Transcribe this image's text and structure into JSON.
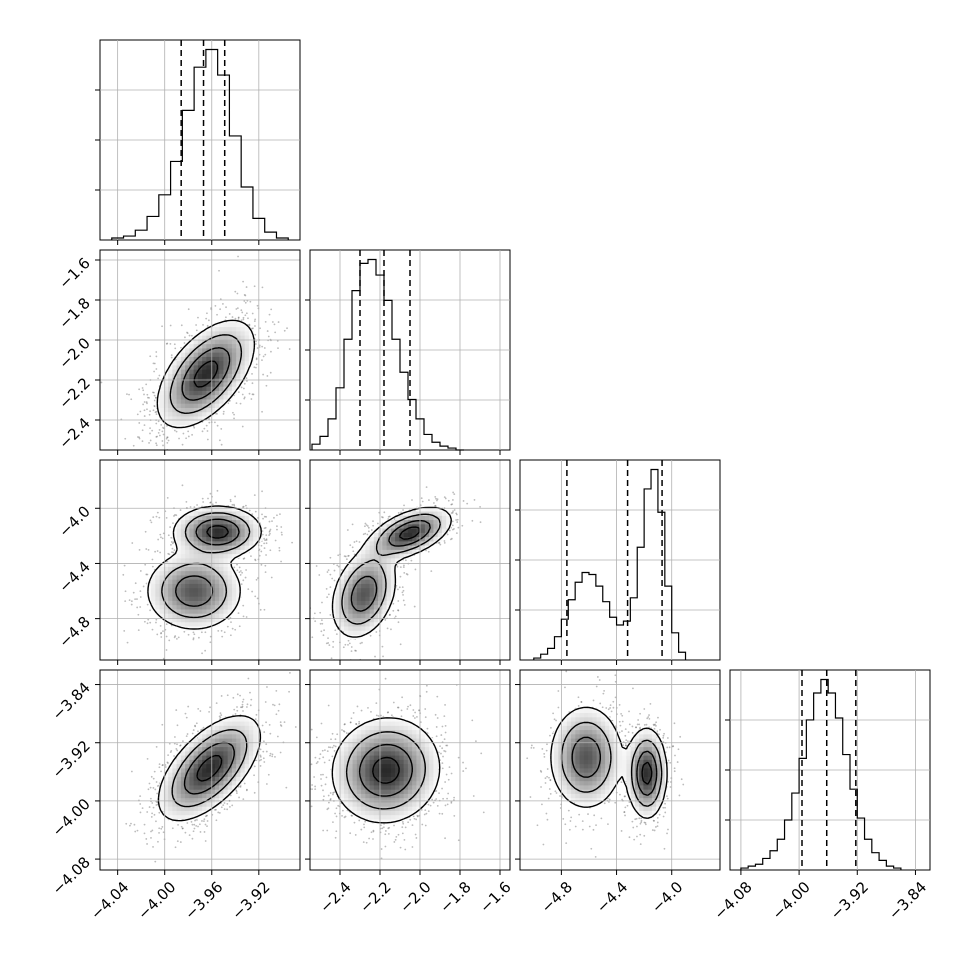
{
  "chart_data": {
    "type": "corner",
    "parameters": 4,
    "grid": true,
    "quantiles": [
      0.16,
      0.5,
      0.84
    ],
    "parameter_ranges": [
      [
        -4.055,
        -3.885
      ],
      [
        -2.55,
        -1.55
      ],
      [
        -5.1,
        -3.65
      ],
      [
        -4.095,
        -3.82
      ]
    ],
    "tick_labels": [
      [
        "−4.04",
        "−4.00",
        "−3.96",
        "−3.92"
      ],
      [
        "−2.4",
        "−2.2",
        "−2.0",
        "−1.8",
        "−1.6"
      ],
      [
        "−4.8",
        "−4.4",
        "−4.0"
      ],
      [
        "−4.08",
        "−4.00",
        "−3.92",
        "−3.84"
      ]
    ],
    "tick_values": [
      [
        -4.04,
        -4.0,
        -3.96,
        -3.92
      ],
      [
        -2.4,
        -2.2,
        -2.0,
        -1.8,
        -1.6
      ],
      [
        -4.8,
        -4.4,
        -4.0
      ],
      [
        -4.08,
        -4.0,
        -3.92,
        -3.84
      ]
    ],
    "marginals": [
      {
        "param": 0,
        "bin_edges": [
          -4.045,
          -4.035,
          -4.025,
          -4.015,
          -4.005,
          -3.995,
          -3.985,
          -3.975,
          -3.965,
          -3.955,
          -3.945,
          -3.935,
          -3.925,
          -3.915,
          -3.905,
          -3.895
        ],
        "counts": [
          0.01,
          0.02,
          0.05,
          0.12,
          0.23,
          0.4,
          0.66,
          0.88,
          0.97,
          0.84,
          0.53,
          0.27,
          0.11,
          0.04,
          0.01
        ],
        "quantile_values": [
          -3.986,
          -3.967,
          -3.949
        ]
      },
      {
        "param": 1,
        "bin_edges": [
          -2.54,
          -2.5,
          -2.46,
          -2.42,
          -2.38,
          -2.34,
          -2.3,
          -2.26,
          -2.22,
          -2.18,
          -2.14,
          -2.1,
          -2.06,
          -2.02,
          -1.98,
          -1.94,
          -1.9,
          -1.86,
          -1.82,
          -1.78
        ],
        "counts": [
          0.03,
          0.07,
          0.16,
          0.32,
          0.57,
          0.82,
          0.96,
          0.98,
          0.9,
          0.77,
          0.57,
          0.4,
          0.26,
          0.16,
          0.08,
          0.04,
          0.02,
          0.01,
          0.0
        ],
        "quantile_values": [
          -2.3,
          -2.18,
          -2.05
        ]
      },
      {
        "param": 2,
        "bin_edges": [
          -5.0,
          -4.95,
          -4.9,
          -4.85,
          -4.8,
          -4.75,
          -4.7,
          -4.65,
          -4.6,
          -4.55,
          -4.5,
          -4.45,
          -4.4,
          -4.35,
          -4.3,
          -4.25,
          -4.2,
          -4.15,
          -4.1,
          -4.05,
          -4.0,
          -3.95,
          -3.9
        ],
        "counts": [
          0.01,
          0.03,
          0.06,
          0.12,
          0.21,
          0.31,
          0.4,
          0.45,
          0.44,
          0.38,
          0.3,
          0.22,
          0.18,
          0.2,
          0.32,
          0.58,
          0.88,
          0.98,
          0.76,
          0.38,
          0.14,
          0.04
        ],
        "quantile_values": [
          -4.76,
          -4.32,
          -4.07
        ]
      },
      {
        "param": 3,
        "bin_edges": [
          -4.08,
          -4.07,
          -4.06,
          -4.05,
          -4.04,
          -4.03,
          -4.02,
          -4.01,
          -4.0,
          -3.99,
          -3.98,
          -3.97,
          -3.96,
          -3.95,
          -3.94,
          -3.93,
          -3.92,
          -3.91,
          -3.9,
          -3.89,
          -3.88,
          -3.87,
          -3.86
        ],
        "counts": [
          0.01,
          0.02,
          0.03,
          0.06,
          0.1,
          0.16,
          0.26,
          0.4,
          0.58,
          0.78,
          0.92,
          0.99,
          0.92,
          0.79,
          0.6,
          0.42,
          0.27,
          0.16,
          0.09,
          0.05,
          0.02,
          0.01
        ],
        "quantile_values": [
          -3.996,
          -3.962,
          -3.922
        ]
      }
    ],
    "joint_panels": [
      {
        "x_param": 0,
        "y_param": 1,
        "modes": [
          {
            "cx": -3.965,
            "cy": -2.17,
            "sx": 0.02,
            "sy": 0.13,
            "rho": 0.55,
            "w": 1.0
          }
        ]
      },
      {
        "x_param": 0,
        "y_param": 2,
        "modes": [
          {
            "cx": -3.955,
            "cy": -4.17,
            "sx": 0.018,
            "sy": 0.09,
            "rho": 0.0,
            "w": 0.55
          },
          {
            "cx": -3.975,
            "cy": -4.6,
            "sx": 0.02,
            "sy": 0.14,
            "rho": 0.0,
            "w": 0.45
          }
        ]
      },
      {
        "x_param": 1,
        "y_param": 2,
        "modes": [
          {
            "cx": -2.05,
            "cy": -4.18,
            "sx": 0.1,
            "sy": 0.09,
            "rho": 0.5,
            "w": 0.55
          },
          {
            "cx": -2.28,
            "cy": -4.62,
            "sx": 0.08,
            "sy": 0.16,
            "rho": 0.3,
            "w": 0.45
          }
        ]
      },
      {
        "x_param": 0,
        "y_param": 3,
        "modes": [
          {
            "cx": -3.962,
            "cy": -3.955,
            "sx": 0.021,
            "sy": 0.035,
            "rho": 0.6,
            "w": 1.0
          }
        ]
      },
      {
        "x_param": 1,
        "y_param": 3,
        "modes": [
          {
            "cx": -2.17,
            "cy": -3.958,
            "sx": 0.13,
            "sy": 0.035,
            "rho": 0.05,
            "w": 1.0
          }
        ]
      },
      {
        "x_param": 2,
        "y_param": 3,
        "modes": [
          {
            "cx": -4.18,
            "cy": -3.962,
            "sx": 0.07,
            "sy": 0.03,
            "rho": 0.0,
            "w": 0.55
          },
          {
            "cx": -4.62,
            "cy": -3.94,
            "sx": 0.13,
            "sy": 0.035,
            "rho": 0.0,
            "w": 0.45
          }
        ]
      }
    ]
  }
}
